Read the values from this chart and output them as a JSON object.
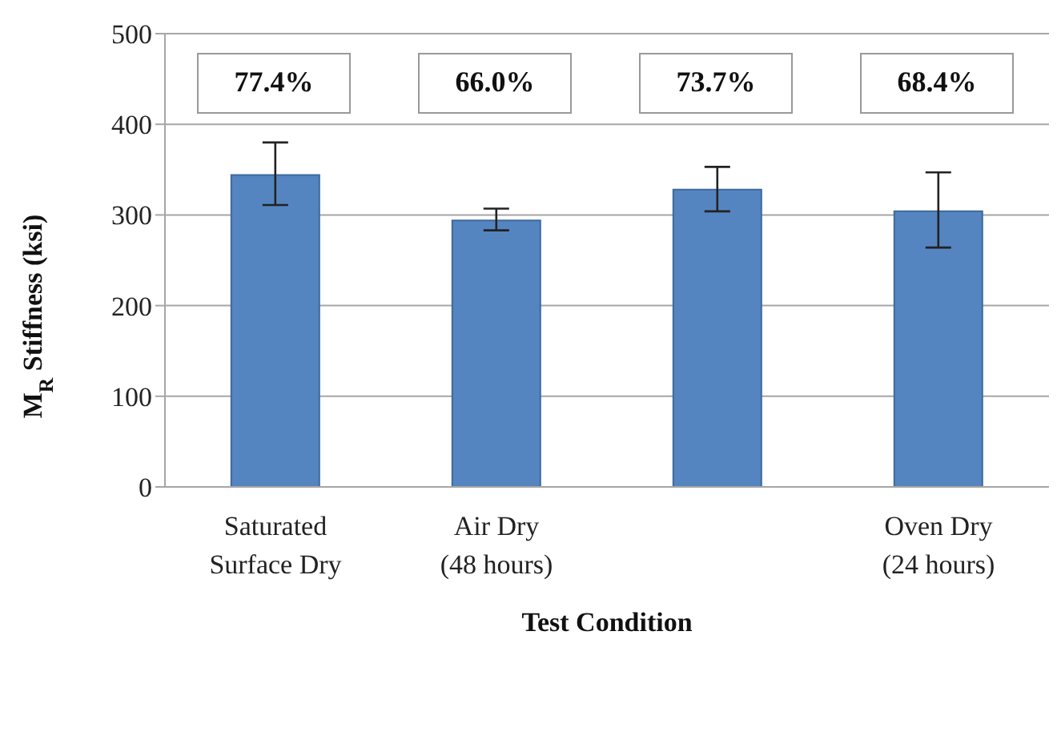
{
  "chart_data": {
    "type": "bar",
    "xlabel": "Test Condition",
    "ylabel": "M$_{R}$ Stiffness (ksi)",
    "categories": [
      "Saturated\nSurface Dry",
      "Air Dry\n(48 hours)",
      null,
      "Oven Dry\n(24 hours)"
    ],
    "values": [
      344,
      294,
      328,
      304
    ],
    "errors": [
      [
        311,
        380
      ],
      [
        283,
        307
      ],
      [
        304,
        353
      ],
      [
        264,
        347
      ]
    ],
    "color": "#5585c1",
    "ylim": [
      0,
      500
    ],
    "yticks": [
      0,
      100,
      200,
      300,
      400,
      500
    ],
    "grid": "y",
    "annotations": [
      "77.4%",
      "66.0%",
      "73.7%",
      "68.4%"
    ]
  }
}
